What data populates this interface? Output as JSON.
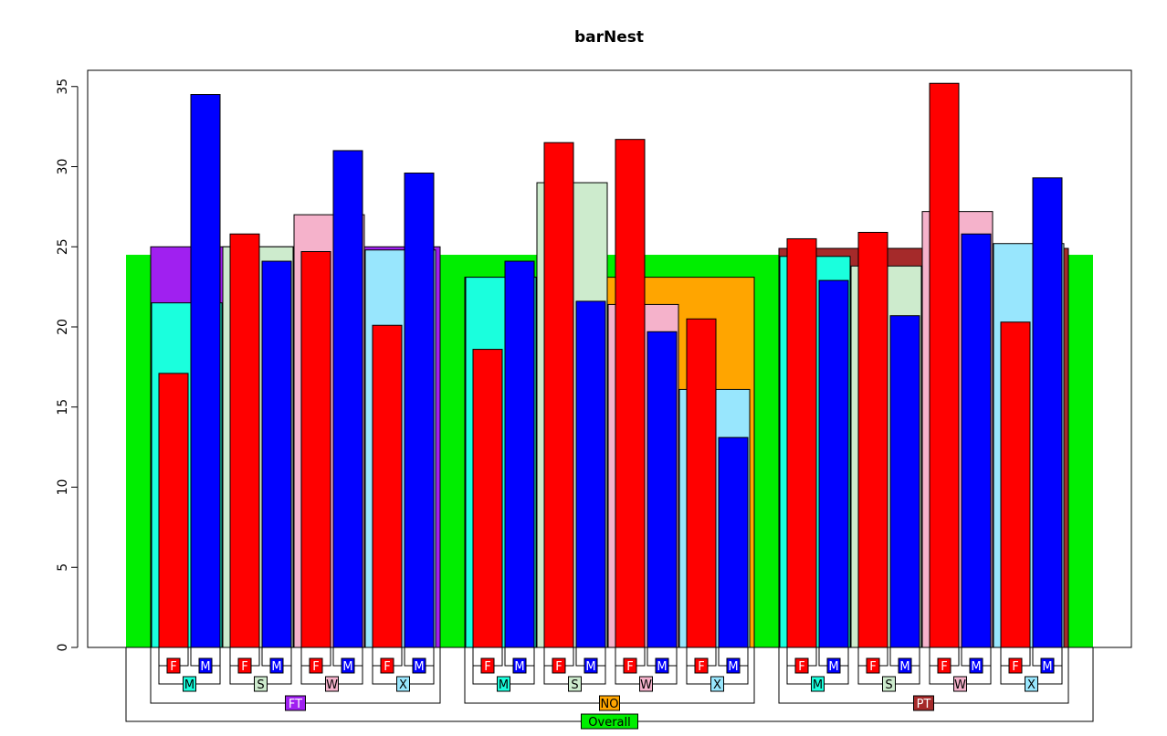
{
  "chart_data": {
    "type": "bar",
    "title": "barNest",
    "xlabel": "",
    "ylabel": "",
    "ylim": [
      0,
      36
    ],
    "yticks": [
      0,
      5,
      10,
      15,
      20,
      25,
      30,
      35
    ],
    "grid": false,
    "overall": {
      "label": "Overall",
      "value": 24.5
    },
    "level_colors": {
      "Overall": "#00ee00",
      "FT": "#a020f0",
      "NO": "#ffa500",
      "PT": "#a52a2a",
      "M": "#1affdd",
      "S": "#cdebcd",
      "W": "#f5b2cb",
      "X": "#98e6fd",
      "F": "#ff0000",
      "Mgender": "#0000ff"
    },
    "groups": [
      {
        "label": "FT",
        "value": 25.0,
        "subgroups": [
          {
            "label": "M",
            "value": 21.5,
            "bars": [
              {
                "label": "F",
                "value": 17.1
              },
              {
                "label": "M",
                "value": 34.5
              }
            ]
          },
          {
            "label": "S",
            "value": 25.0,
            "bars": [
              {
                "label": "F",
                "value": 25.8
              },
              {
                "label": "M",
                "value": 24.1
              }
            ]
          },
          {
            "label": "W",
            "value": 27.0,
            "bars": [
              {
                "label": "F",
                "value": 24.7
              },
              {
                "label": "M",
                "value": 31.0
              }
            ]
          },
          {
            "label": "X",
            "value": 24.8,
            "bars": [
              {
                "label": "F",
                "value": 20.1
              },
              {
                "label": "M",
                "value": 29.6
              }
            ]
          }
        ]
      },
      {
        "label": "NO",
        "value": 23.1,
        "subgroups": [
          {
            "label": "M",
            "value": 23.1,
            "bars": [
              {
                "label": "F",
                "value": 18.6
              },
              {
                "label": "M",
                "value": 24.1
              }
            ]
          },
          {
            "label": "S",
            "value": 29.0,
            "bars": [
              {
                "label": "F",
                "value": 31.5
              },
              {
                "label": "M",
                "value": 21.6
              }
            ]
          },
          {
            "label": "W",
            "value": 21.4,
            "bars": [
              {
                "label": "F",
                "value": 31.7
              },
              {
                "label": "M",
                "value": 19.7
              }
            ]
          },
          {
            "label": "X",
            "value": 16.1,
            "bars": [
              {
                "label": "F",
                "value": 20.5
              },
              {
                "label": "M",
                "value": 13.1
              }
            ]
          }
        ]
      },
      {
        "label": "PT",
        "value": 24.9,
        "subgroups": [
          {
            "label": "M",
            "value": 24.4,
            "bars": [
              {
                "label": "F",
                "value": 25.5
              },
              {
                "label": "M",
                "value": 22.9
              }
            ]
          },
          {
            "label": "S",
            "value": 23.8,
            "bars": [
              {
                "label": "F",
                "value": 25.9
              },
              {
                "label": "M",
                "value": 20.7
              }
            ]
          },
          {
            "label": "W",
            "value": 27.2,
            "bars": [
              {
                "label": "F",
                "value": 35.2
              },
              {
                "label": "M",
                "value": 25.8
              }
            ]
          },
          {
            "label": "X",
            "value": 25.2,
            "bars": [
              {
                "label": "F",
                "value": 20.3
              },
              {
                "label": "M",
                "value": 29.3
              }
            ]
          }
        ]
      }
    ]
  }
}
